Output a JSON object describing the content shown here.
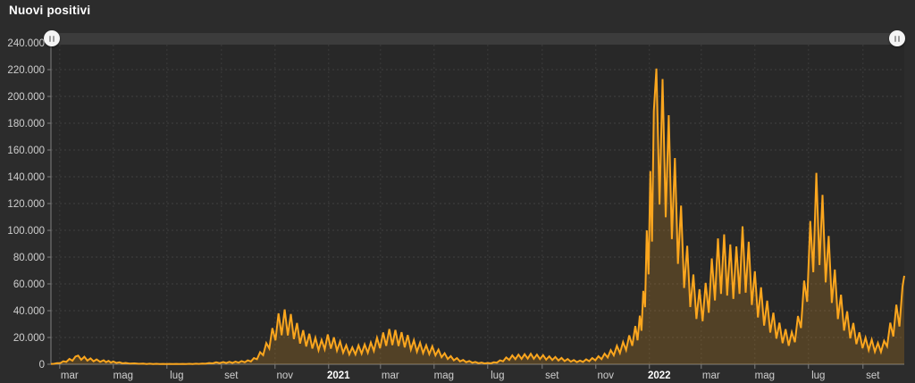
{
  "header": {
    "title": "Nuovi positivi"
  },
  "slider": {
    "type": "horizontal-range-scrollbar",
    "handles": [
      "left",
      "right"
    ],
    "position": "full-range"
  },
  "chart_data": {
    "type": "area",
    "title": "Nuovi positivi",
    "subtitle": "",
    "legend": "none",
    "grid": "dashed",
    "series_description": "Daily new positive COVID-19 cases, Italy, late Feb 2020 - mid Oct 2022; spiky weekly oscillation; values below are weekly peak envelope [day_offset, cases]",
    "colors": {
      "line": "#fba61e",
      "fill": "rgba(250,166,30,0.20)",
      "plot_bg": "#282828",
      "page_bg": "#2c2c2c",
      "grid_h": "#404040",
      "grid_v": "#3b3b3b",
      "axis": "#7f7f7f",
      "label": "#cfcfcf",
      "year_label": "#ffffff",
      "title": "#ffffff",
      "slider_track": "#3c3c3c",
      "slider_handle": "#f4f4f4"
    },
    "y_axis": {
      "min": 0,
      "max": 240000,
      "step": 20000,
      "tick_labels": [
        "0",
        "20.000",
        "40.000",
        "60.000",
        "80.000",
        "100.000",
        "120.000",
        "140.000",
        "160.000",
        "180.000",
        "200.000",
        "220.000",
        "240.000"
      ]
    },
    "x_axis": {
      "total_days": 971,
      "ticks": [
        {
          "label": "mar",
          "day": 10,
          "year": false
        },
        {
          "label": "mag",
          "day": 71,
          "year": false
        },
        {
          "label": "lug",
          "day": 132,
          "year": false
        },
        {
          "label": "set",
          "day": 194,
          "year": false
        },
        {
          "label": "nov",
          "day": 255,
          "year": false
        },
        {
          "label": "2021",
          "day": 316,
          "year": true
        },
        {
          "label": "mar",
          "day": 375,
          "year": false
        },
        {
          "label": "mag",
          "day": 436,
          "year": false
        },
        {
          "label": "lug",
          "day": 497,
          "year": false
        },
        {
          "label": "set",
          "day": 559,
          "year": false
        },
        {
          "label": "nov",
          "day": 620,
          "year": false
        },
        {
          "label": "2022",
          "day": 681,
          "year": true
        },
        {
          "label": "mar",
          "day": 740,
          "year": false
        },
        {
          "label": "mag",
          "day": 801,
          "year": false
        },
        {
          "label": "lug",
          "day": 862,
          "year": false
        },
        {
          "label": "set",
          "day": 924,
          "year": false
        }
      ]
    },
    "weekly_dip": 0.45,
    "series": [
      {
        "name": "Nuovi positivi",
        "weekly_peaks": [
          [
            0,
            300
          ],
          [
            7,
            800
          ],
          [
            14,
            2200
          ],
          [
            21,
            4000
          ],
          [
            28,
            5800
          ],
          [
            31,
            6500
          ],
          [
            38,
            5600
          ],
          [
            45,
            4400
          ],
          [
            52,
            3600
          ],
          [
            60,
            3000
          ],
          [
            71,
            2100
          ],
          [
            78,
            1500
          ],
          [
            85,
            1000
          ],
          [
            95,
            650
          ],
          [
            105,
            450
          ],
          [
            120,
            330
          ],
          [
            135,
            260
          ],
          [
            150,
            300
          ],
          [
            165,
            420
          ],
          [
            172,
            560
          ],
          [
            180,
            950
          ],
          [
            188,
            1450
          ],
          [
            196,
            1650
          ],
          [
            203,
            1800
          ],
          [
            210,
            1950
          ],
          [
            217,
            2350
          ],
          [
            224,
            2900
          ],
          [
            231,
            4600
          ],
          [
            238,
            9000
          ],
          [
            245,
            15800
          ],
          [
            252,
            27000
          ],
          [
            259,
            38000
          ],
          [
            266,
            40900
          ],
          [
            273,
            37500
          ],
          [
            280,
            30800
          ],
          [
            287,
            25500
          ],
          [
            294,
            22800
          ],
          [
            301,
            19800
          ],
          [
            308,
            18200
          ],
          [
            315,
            22300
          ],
          [
            322,
            20100
          ],
          [
            329,
            17000
          ],
          [
            336,
            14200
          ],
          [
            343,
            12600
          ],
          [
            350,
            14100
          ],
          [
            357,
            14800
          ],
          [
            364,
            16300
          ],
          [
            371,
            19800
          ],
          [
            378,
            23700
          ],
          [
            385,
            26300
          ],
          [
            392,
            25600
          ],
          [
            399,
            23900
          ],
          [
            406,
            21800
          ],
          [
            413,
            17900
          ],
          [
            420,
            16100
          ],
          [
            427,
            14200
          ],
          [
            434,
            13400
          ],
          [
            441,
            10900
          ],
          [
            448,
            8200
          ],
          [
            455,
            6100
          ],
          [
            462,
            4600
          ],
          [
            469,
            3200
          ],
          [
            476,
            2400
          ],
          [
            483,
            1700
          ],
          [
            490,
            1300
          ],
          [
            497,
            1000
          ],
          [
            504,
            1450
          ],
          [
            511,
            2900
          ],
          [
            518,
            5100
          ],
          [
            525,
            6600
          ],
          [
            532,
            7200
          ],
          [
            539,
            7450
          ],
          [
            546,
            7800
          ],
          [
            553,
            7200
          ],
          [
            560,
            6800
          ],
          [
            567,
            5900
          ],
          [
            574,
            5450
          ],
          [
            581,
            4700
          ],
          [
            588,
            3900
          ],
          [
            595,
            3150
          ],
          [
            602,
            2700
          ],
          [
            609,
            3650
          ],
          [
            616,
            4600
          ],
          [
            623,
            6000
          ],
          [
            630,
            7900
          ],
          [
            637,
            10550
          ],
          [
            644,
            13750
          ],
          [
            651,
            16600
          ],
          [
            658,
            21600
          ],
          [
            665,
            28600
          ],
          [
            670,
            36300
          ],
          [
            674,
            54800
          ],
          [
            678,
            100000
          ],
          [
            682,
            144200
          ],
          [
            686,
            189000
          ],
          [
            689,
            220800
          ],
          [
            696,
            213000
          ],
          [
            703,
            186000
          ],
          [
            710,
            154000
          ],
          [
            717,
            118500
          ],
          [
            724,
            88500
          ],
          [
            731,
            67000
          ],
          [
            738,
            56000
          ],
          [
            745,
            60800
          ],
          [
            752,
            79000
          ],
          [
            759,
            94000
          ],
          [
            766,
            97000
          ],
          [
            773,
            89500
          ],
          [
            780,
            88000
          ],
          [
            787,
            103000
          ],
          [
            794,
            91500
          ],
          [
            801,
            69500
          ],
          [
            808,
            57500
          ],
          [
            815,
            47500
          ],
          [
            822,
            38500
          ],
          [
            829,
            31000
          ],
          [
            836,
            26200
          ],
          [
            843,
            24000
          ],
          [
            850,
            36000
          ],
          [
            857,
            62500
          ],
          [
            864,
            107000
          ],
          [
            871,
            142900
          ],
          [
            878,
            126500
          ],
          [
            885,
            95800
          ],
          [
            892,
            70700
          ],
          [
            899,
            51900
          ],
          [
            906,
            39500
          ],
          [
            913,
            30800
          ],
          [
            920,
            23800
          ],
          [
            927,
            19800
          ],
          [
            934,
            18400
          ],
          [
            941,
            15900
          ],
          [
            948,
            17500
          ],
          [
            955,
            31000
          ],
          [
            962,
            44500
          ],
          [
            969,
            58000
          ],
          [
            971,
            66100
          ]
        ]
      }
    ]
  }
}
